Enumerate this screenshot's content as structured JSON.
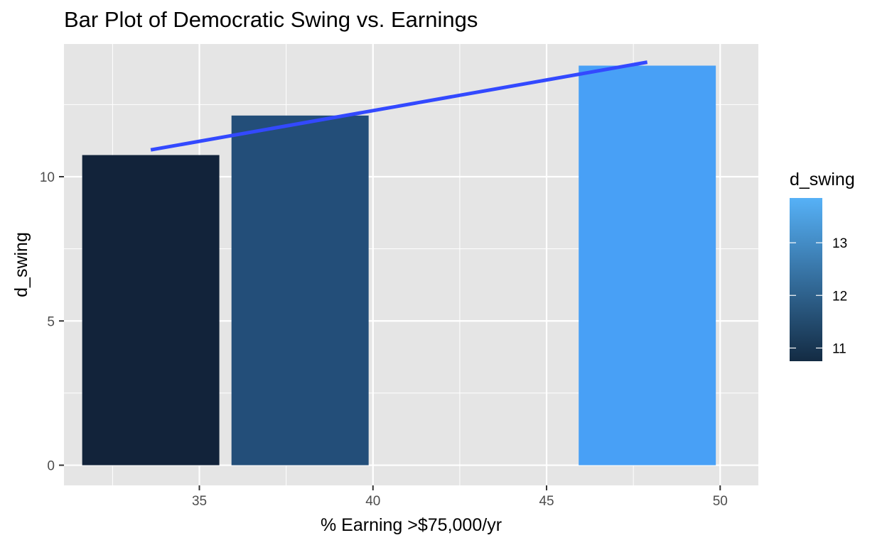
{
  "chart_data": {
    "type": "bar",
    "title": "Bar Plot of Democratic Swing vs. Earnings",
    "xlabel": "% Earning >$75,000/yr",
    "ylabel": "d_swing",
    "x_ticks": [
      35,
      40,
      45,
      50
    ],
    "y_ticks": [
      0,
      5,
      10
    ],
    "xlim": [
      31.1,
      51.1
    ],
    "ylim": [
      -0.7,
      14.6
    ],
    "bars": [
      {
        "x": 33.6,
        "value": 10.75,
        "color": "#12233a"
      },
      {
        "x": 37.9,
        "value": 12.12,
        "color": "#234e79"
      },
      {
        "x": 47.9,
        "value": 13.85,
        "color": "#48a0f6"
      }
    ],
    "bar_width": 3.95,
    "trend_line": {
      "x": [
        33.6,
        47.9
      ],
      "y": [
        10.93,
        13.97
      ],
      "color": "#3349ff"
    },
    "legend": {
      "title": "d_swing",
      "placement": "right",
      "labels": [
        "11",
        "12",
        "13"
      ],
      "values": [
        11,
        12,
        13
      ],
      "range": [
        10.75,
        13.85
      ],
      "color_low": "#132b43",
      "color_high": "#56b1f7"
    },
    "panel_background": "#e5e5e5",
    "grid": true
  }
}
